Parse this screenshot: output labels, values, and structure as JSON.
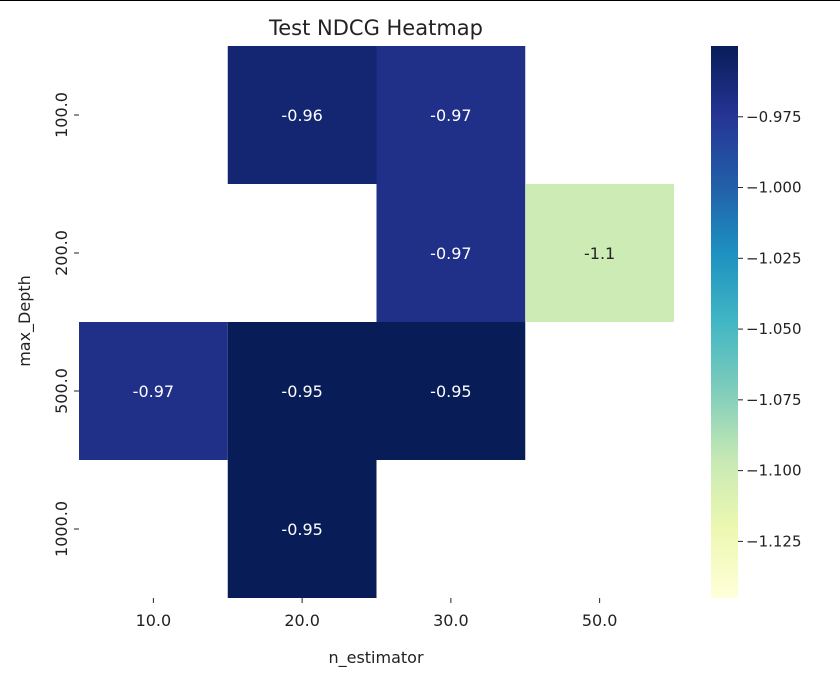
{
  "chart_data": {
    "type": "heatmap",
    "title": "Test NDCG Heatmap",
    "xlabel": "n_estimator",
    "ylabel": "max_Depth",
    "x_categories": [
      "10.0",
      "20.0",
      "30.0",
      "50.0"
    ],
    "y_categories": [
      "100.0",
      "200.0",
      "500.0",
      "1000.0"
    ],
    "values": [
      [
        null,
        -0.96,
        -0.97,
        null
      ],
      [
        null,
        null,
        -0.97,
        -1.1
      ],
      [
        -0.97,
        -0.95,
        -0.95,
        null
      ],
      [
        null,
        -0.95,
        null,
        null
      ]
    ],
    "cell_labels": [
      [
        null,
        "-0.96",
        "-0.97",
        null
      ],
      [
        null,
        null,
        "-0.97",
        "-1.1"
      ],
      [
        "-0.97",
        "-0.95",
        "-0.95",
        null
      ],
      [
        null,
        "-0.95",
        null,
        null
      ]
    ],
    "colorbar": {
      "colormap": "YlGnBu",
      "range": [
        -1.145,
        -0.95
      ],
      "ticks": [
        -0.975,
        -1.0,
        -1.025,
        -1.05,
        -1.075,
        -1.1,
        -1.125
      ],
      "tick_labels": [
        "−0.975",
        "−1.000",
        "−1.025",
        "−1.050",
        "−1.075",
        "−1.100",
        "−1.125"
      ]
    },
    "grid": false
  }
}
